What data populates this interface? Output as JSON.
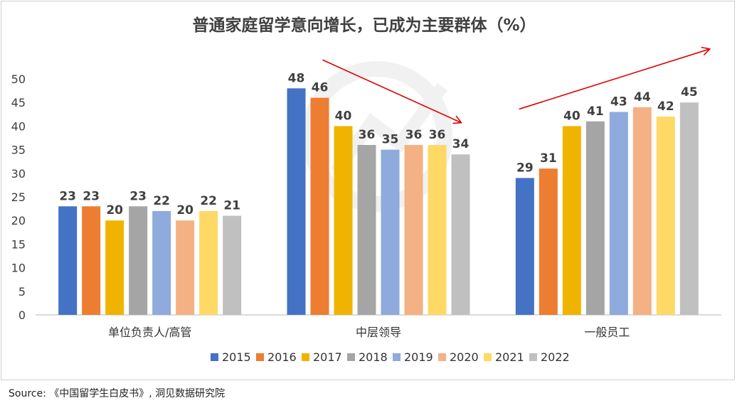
{
  "source_text": "Source: 《中国留学生白皮书》, 洞见数据研究院",
  "watermark": {
    "cn": "",
    "en": ""
  },
  "chart_data": {
    "type": "bar",
    "title": "普通家庭留学意向增长，已成为主要群体（%）",
    "xlabel": "",
    "ylabel": "",
    "ylim": [
      0,
      50
    ],
    "yticks": [
      0,
      5,
      10,
      15,
      20,
      25,
      30,
      35,
      40,
      45,
      50
    ],
    "grid": false,
    "legend_position": "bottom",
    "categories": [
      "单位负责人/高管",
      "中层领导",
      "一般员工"
    ],
    "series": [
      {
        "name": "2015",
        "color": "#4472c4",
        "values": [
          23,
          48,
          29
        ]
      },
      {
        "name": "2016",
        "color": "#ed7d31",
        "values": [
          23,
          46,
          31
        ]
      },
      {
        "name": "2017",
        "color": "#f0b400",
        "values": [
          20,
          40,
          40
        ]
      },
      {
        "name": "2018",
        "color": "#a5a5a5",
        "values": [
          23,
          36,
          41
        ]
      },
      {
        "name": "2019",
        "color": "#8faadc",
        "values": [
          22,
          35,
          43
        ]
      },
      {
        "name": "2020",
        "color": "#f4b183",
        "values": [
          20,
          36,
          44
        ]
      },
      {
        "name": "2021",
        "color": "#ffd966",
        "values": [
          22,
          36,
          42
        ]
      },
      {
        "name": "2022",
        "color": "#c0c0c0",
        "values": [
          21,
          34,
          45
        ]
      }
    ],
    "annotations": [
      {
        "type": "trend-arrow",
        "category": "中层领导",
        "direction": "down",
        "color": "#e00000"
      },
      {
        "type": "trend-arrow",
        "category": "一般员工",
        "direction": "up",
        "color": "#e00000"
      }
    ]
  }
}
